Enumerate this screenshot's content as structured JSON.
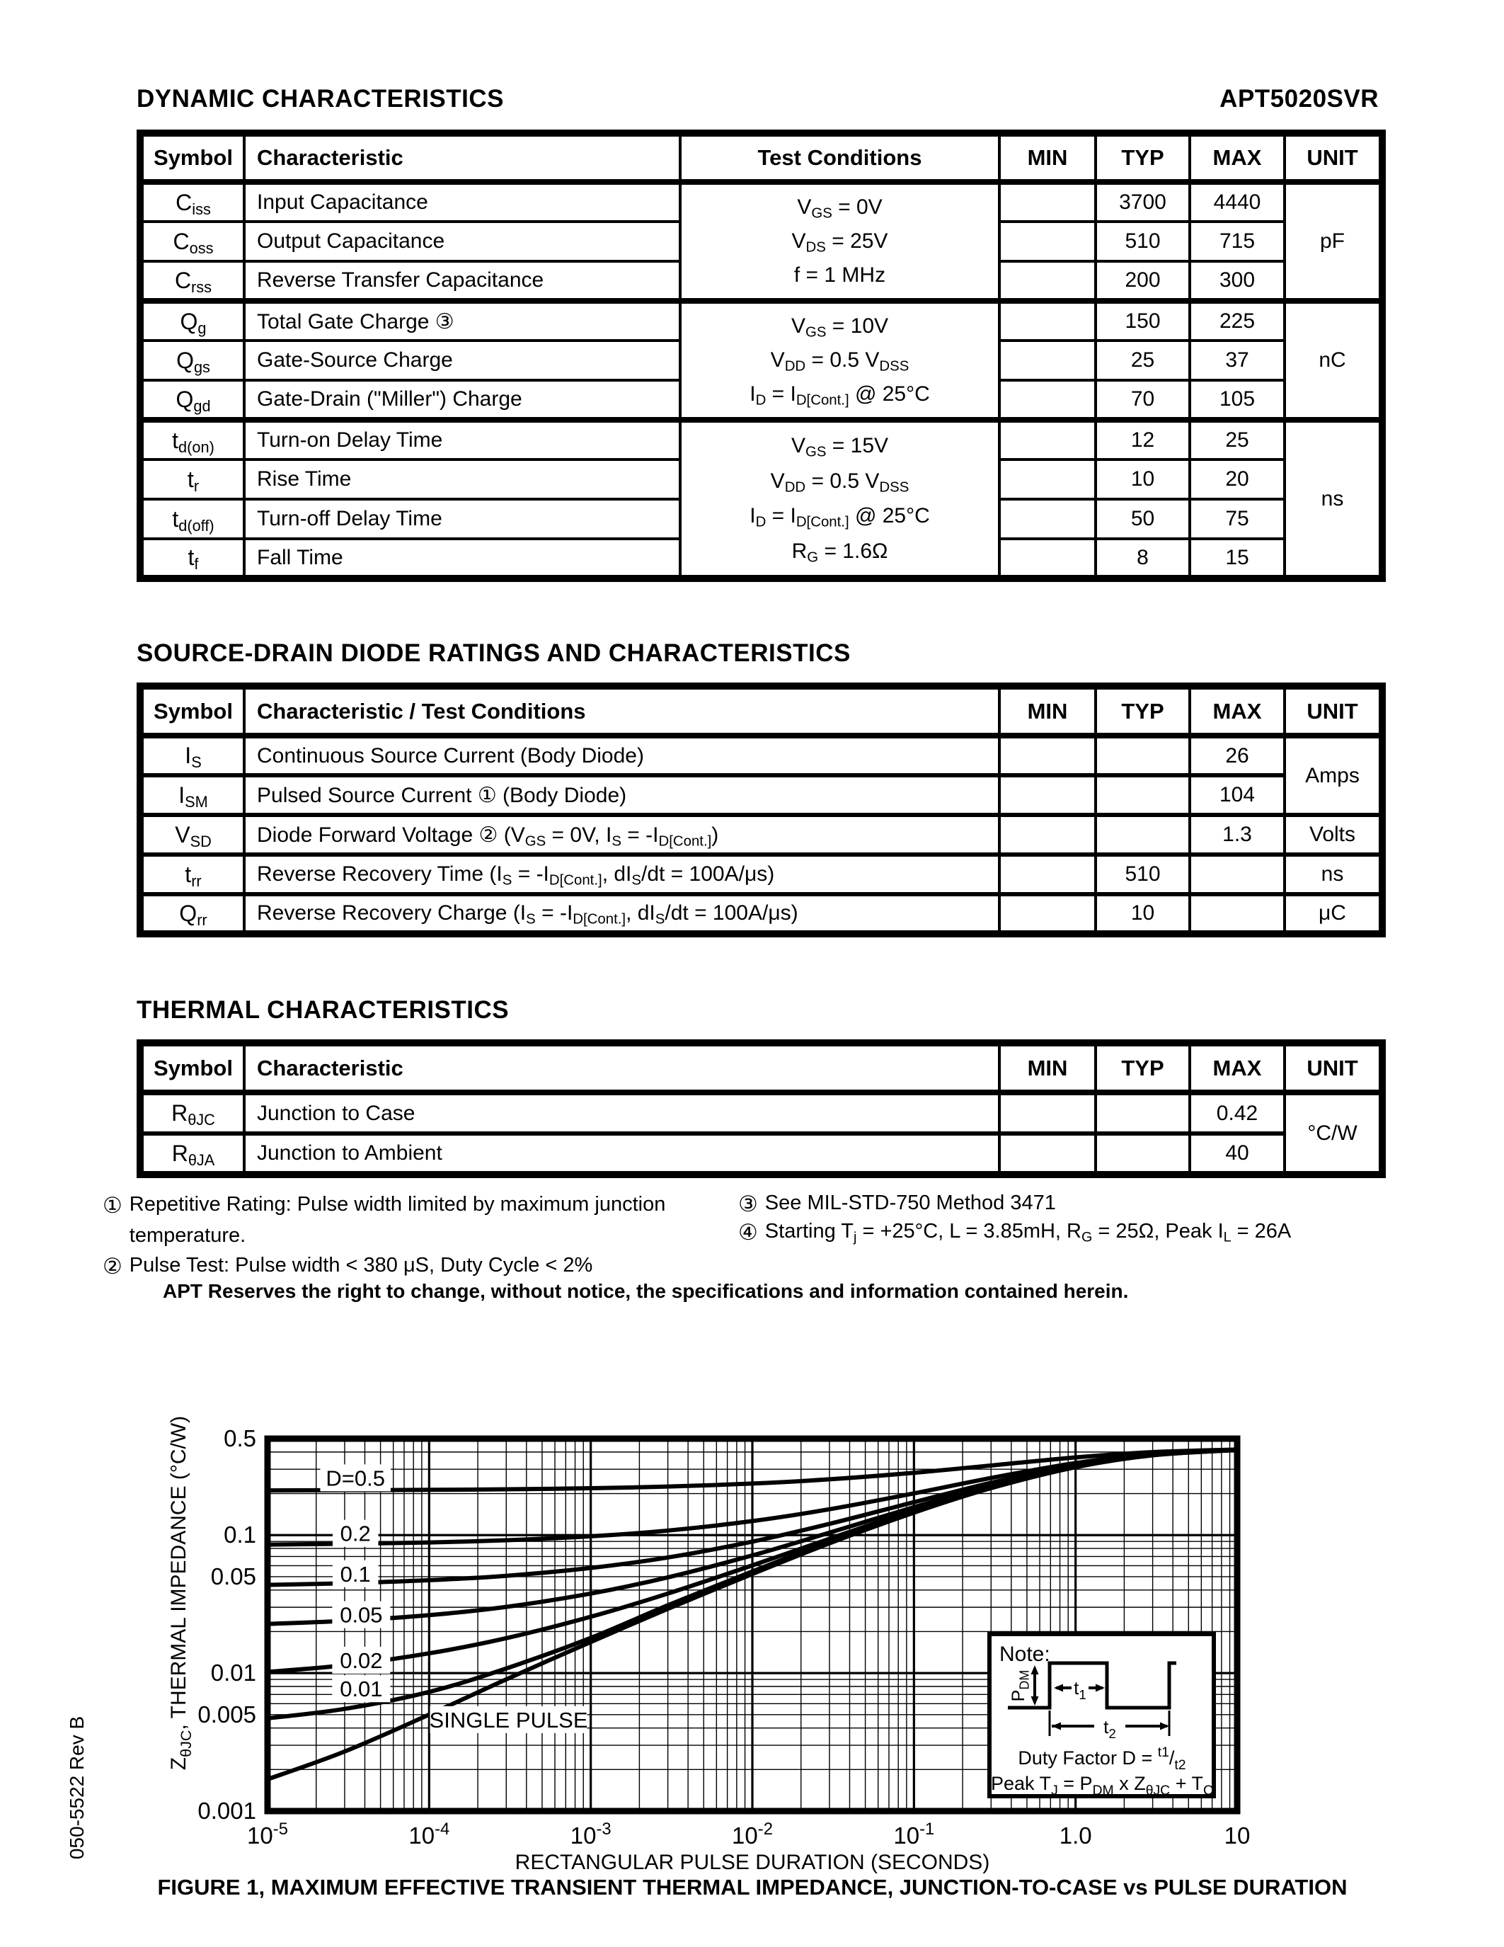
{
  "header": {
    "title": "DYNAMIC CHARACTERISTICS",
    "part_number": "APT5020SVR"
  },
  "sections": {
    "diode": "SOURCE-DRAIN DIODE RATINGS AND CHARACTERISTICS",
    "thermal": "THERMAL CHARACTERISTICS"
  },
  "dyn": {
    "headers": [
      "Symbol",
      "Characteristic",
      "Test Conditions",
      "MIN",
      "TYP",
      "MAX",
      "UNIT"
    ],
    "rows": [
      {
        "symbol": "C~iss~",
        "characteristic": "Input Capacitance",
        "typ": "3700",
        "max": "4440"
      },
      {
        "symbol": "C~oss~",
        "characteristic": "Output Capacitance",
        "typ": "510",
        "max": "715"
      },
      {
        "symbol": "C~rss~",
        "characteristic": "Reverse Transfer Capacitance",
        "typ": "200",
        "max": "300"
      },
      {
        "symbol": "Q~g~",
        "characteristic": "Total Gate Charge ③",
        "typ": "150",
        "max": "225"
      },
      {
        "symbol": "Q~gs~",
        "characteristic": "Gate-Source Charge",
        "typ": "25",
        "max": "37"
      },
      {
        "symbol": "Q~gd~",
        "characteristic": "Gate-Drain (\"Miller\") Charge",
        "typ": "70",
        "max": "105"
      },
      {
        "symbol": "t~d(on)~",
        "characteristic": "Turn-on Delay Time",
        "typ": "12",
        "max": "25"
      },
      {
        "symbol": "t~r~",
        "characteristic": "Rise Time",
        "typ": "10",
        "max": "20"
      },
      {
        "symbol": "t~d(off)~",
        "characteristic": "Turn-off Delay Time",
        "typ": "50",
        "max": "75"
      },
      {
        "symbol": "t~f~",
        "characteristic": "Fall Time",
        "typ": "8",
        "max": "15"
      }
    ],
    "cond_cap": [
      "V~GS~ = 0V",
      "V~DS~ = 25V",
      "f = 1 MHz"
    ],
    "cond_charge": [
      "V~GS~ = 10V",
      "V~DD~ = 0.5 V~DSS~",
      "I~D~ = I~D[Cont.]~ @ 25°C"
    ],
    "cond_switch": [
      "V~GS~ = 15V",
      "V~DD~ = 0.5 V~DSS~",
      "I~D~ = I~D[Cont.]~ @ 25°C",
      "R~G~ = 1.6Ω"
    ],
    "units": {
      "cap": "pF",
      "charge": "nC",
      "switch": "ns"
    }
  },
  "diode": {
    "headers": [
      "Symbol",
      "Characteristic / Test Conditions",
      "MIN",
      "TYP",
      "MAX",
      "UNIT"
    ],
    "rows": [
      {
        "symbol": "I~S~",
        "characteristic": "Continuous Source Current  (Body Diode)",
        "max": "26"
      },
      {
        "symbol": "I~SM~",
        "characteristic": "Pulsed Source Current ①  (Body Diode)",
        "max": "104"
      },
      {
        "symbol": "V~SD~",
        "characteristic": "Diode Forward Voltage ② (V~GS~ = 0V, I~S~ = -I~D[Cont.]~)",
        "max": "1.3",
        "unit": "Volts"
      },
      {
        "symbol": "t~rr~",
        "characteristic": "Reverse Recovery Time  (I~S~ = -I~D[Cont.]~, dI~S~/dt = 100A/μs)",
        "typ": "510",
        "unit": "ns"
      },
      {
        "symbol": "Q~rr~",
        "characteristic": "Reverse Recovery Charge  (I~S~ = -I~D[Cont.]~, dI~S~/dt = 100A/μs)",
        "typ": "10",
        "unit": "μC"
      }
    ],
    "unit_amps": "Amps"
  },
  "thermal": {
    "headers": [
      "Symbol",
      "Characteristic",
      "MIN",
      "TYP",
      "MAX",
      "UNIT"
    ],
    "rows": [
      {
        "symbol": "R~θJC~",
        "characteristic": "Junction to Case",
        "max": "0.42"
      },
      {
        "symbol": "R~θJA~",
        "characteristic": "Junction to Ambient",
        "max": "40"
      }
    ],
    "unit": "°C/W"
  },
  "footnotes": [
    {
      "mark": "①",
      "text": "Repetitive Rating: Pulse width limited by maximum junction\ntemperature."
    },
    {
      "mark": "②",
      "text": "Pulse Test: Pulse width < 380 μS, Duty Cycle < 2%"
    },
    {
      "mark": "③",
      "text": "See MIL-STD-750 Method 3471"
    },
    {
      "mark": "④",
      "text": "Starting T~j~ = +25°C, L = 3.85mH, R~G~ = 25Ω, Peak I~L~ = 26A"
    }
  ],
  "disclaimer": "APT Reserves the right to change, without notice, the specifications and information contained herein.",
  "side_code": "050-5522 Rev B",
  "chart_data": {
    "type": "line",
    "title": "FIGURE 1, MAXIMUM EFFECTIVE TRANSIENT THERMAL IMPEDANCE, JUNCTION-TO-CASE vs PULSE DURATION",
    "xlabel": "RECTANGULAR PULSE DURATION (SECONDS)",
    "ylabel": "Z~θJC~, THERMAL IMPEDANCE (°C/W)",
    "x_scale": "log",
    "y_scale": "log",
    "grid": true,
    "legend": "inline-labels",
    "xlim": [
      1e-05,
      10
    ],
    "ylim": [
      0.001,
      0.5
    ],
    "x_ticks": [
      {
        "t": 1e-05,
        "label": "10^-5^"
      },
      {
        "t": 0.0001,
        "label": "10^-4^"
      },
      {
        "t": 0.001,
        "label": "10^-3^"
      },
      {
        "t": 0.01,
        "label": "10^-2^"
      },
      {
        "t": 0.1,
        "label": "10^-1^"
      },
      {
        "t": 1,
        "label": "1.0"
      },
      {
        "t": 10,
        "label": "10"
      }
    ],
    "y_ticks": [
      {
        "v": 0.5,
        "label": "0.5"
      },
      {
        "v": 0.1,
        "label": "0.1"
      },
      {
        "v": 0.05,
        "label": "0.05"
      },
      {
        "v": 0.01,
        "label": "0.01"
      },
      {
        "v": 0.005,
        "label": "0.005"
      },
      {
        "v": 0.001,
        "label": "0.001"
      }
    ],
    "t": [
      1e-05,
      3e-05,
      0.0001,
      0.0003,
      0.001,
      0.003,
      0.01,
      0.03,
      0.1,
      0.3,
      1,
      3,
      10
    ],
    "series": [
      {
        "name": "D=0.5",
        "values": [
          0.2109,
          0.2115,
          0.2128,
          0.2149,
          0.2188,
          0.225,
          0.2365,
          0.2537,
          0.2829,
          0.3197,
          0.3655,
          0.3997,
          0.417
        ]
      },
      {
        "name": "D=0.2",
        "values": [
          0.0854,
          0.0865,
          0.0885,
          0.0918,
          0.098,
          0.1079,
          0.1264,
          0.154,
          0.2006,
          0.2595,
          0.3328,
          0.3875,
          0.4153
        ]
      },
      {
        "name": "D=0.1",
        "values": [
          0.0436,
          0.0448,
          0.0471,
          0.0507,
          0.0578,
          0.0689,
          0.0897,
          0.1207,
          0.1732,
          0.2394,
          0.3219,
          0.3834,
          0.4147
        ]
      },
      {
        "name": "D=0.05",
        "values": [
          0.0227,
          0.0239,
          0.0263,
          0.0302,
          0.0377,
          0.0494,
          0.0713,
          0.1041,
          0.1595,
          0.2294,
          0.3164,
          0.3814,
          0.4144
        ]
      },
      {
        "name": "D=0.02",
        "values": [
          0.0102,
          0.0114,
          0.0139,
          0.0179,
          0.0256,
          0.0377,
          0.0603,
          0.0941,
          0.1513,
          0.2233,
          0.3131,
          0.3802,
          0.4142
        ]
      },
      {
        "name": "D=0.01",
        "values": [
          0.0047,
          0.0055,
          0.0073,
          0.0108,
          0.018,
          0.031,
          0.0545,
          0.0895,
          0.1475,
          0.221,
          0.3115,
          0.3797,
          0.4141
        ]
      },
      {
        "name": "SINGLE PULSE",
        "values": [
          0.0017,
          0.0027,
          0.005,
          0.009,
          0.0168,
          0.0292,
          0.0522,
          0.0872,
          0.1455,
          0.219,
          0.3105,
          0.379,
          0.414
        ]
      }
    ],
    "curve_labels": [
      {
        "text": "D=0.5",
        "t": 3.5e-05,
        "z": 0.26
      },
      {
        "text": "0.2",
        "t": 3.5e-05,
        "z": 0.103
      },
      {
        "text": "0.1",
        "t": 3.5e-05,
        "z": 0.0525
      },
      {
        "text": "0.05",
        "t": 3.8e-05,
        "z": 0.0265
      },
      {
        "text": "0.02",
        "t": 3.8e-05,
        "z": 0.0124
      },
      {
        "text": "0.01",
        "t": 3.8e-05,
        "z": 0.0077
      },
      {
        "text": "SINGLE PULSE",
        "t": 0.00031,
        "z": 0.0046
      }
    ],
    "note": {
      "title": "Note:",
      "p_label": "P~DM~",
      "t1": "t~1~",
      "t2": "t~2~",
      "duty": "Duty Factor  D = ^t1^/~t2~",
      "peak": "Peak T~J~ = P~DM~ x Z~θJC~ + T~C~"
    },
    "colors": {
      "ink": "#000000",
      "paper": "#ffffff"
    }
  }
}
